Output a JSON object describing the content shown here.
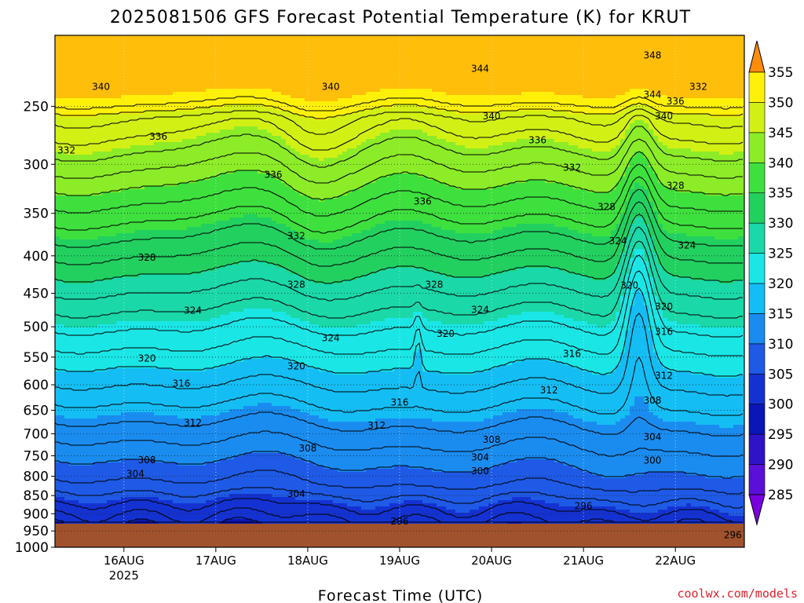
{
  "chart_data": {
    "type": "heatmap",
    "title": "2025081506 GFS Forecast Potential Temperature (K) for KRUT",
    "xlabel": "Forecast Time (UTC)",
    "ylabel": "",
    "y_scale": "pressure (log, inverted)",
    "ylim": [
      1000,
      200
    ],
    "yticks": [
      250,
      300,
      350,
      400,
      450,
      500,
      550,
      600,
      650,
      700,
      750,
      800,
      850,
      900,
      950,
      1000
    ],
    "xticks": [
      {
        "label": "16AUG",
        "sub": "2025",
        "time": "2025-08-16T00:00"
      },
      {
        "label": "17AUG",
        "sub": "",
        "time": "2025-08-17T00:00"
      },
      {
        "label": "18AUG",
        "sub": "",
        "time": "2025-08-18T00:00"
      },
      {
        "label": "19AUG",
        "sub": "",
        "time": "2025-08-19T00:00"
      },
      {
        "label": "20AUG",
        "sub": "",
        "time": "2025-08-20T00:00"
      },
      {
        "label": "21AUG",
        "sub": "",
        "time": "2025-08-21T00:00"
      },
      {
        "label": "22AUG",
        "sub": "",
        "time": "2025-08-22T00:00"
      }
    ],
    "xlim": [
      "2025-08-15T06:00",
      "2025-08-22T18:00"
    ],
    "grid": true,
    "colorbar": {
      "placement": "right",
      "levels": [
        285,
        290,
        295,
        300,
        305,
        310,
        315,
        320,
        325,
        330,
        335,
        340,
        345,
        350,
        355
      ],
      "colors": [
        "#7a00e0",
        "#5a10d8",
        "#2e14c8",
        "#0a16b8",
        "#1432d2",
        "#1e5ae6",
        "#1a8cf0",
        "#14bef4",
        "#1ae6e6",
        "#1ad8a8",
        "#22d060",
        "#3ee03e",
        "#8cec28",
        "#d2f014",
        "#fff00a",
        "#ffbe0a",
        "#ff8c0a"
      ]
    },
    "ground_color": "#a0522d",
    "contour_labels": [
      {
        "value": "348",
        "time": "2025-08-21T18:00",
        "p": 213
      },
      {
        "value": "344",
        "time": "2025-08-19T21:00",
        "p": 222
      },
      {
        "value": "344",
        "time": "2025-08-21T18:00",
        "p": 241
      },
      {
        "value": "340",
        "time": "2025-08-15T18:00",
        "p": 235
      },
      {
        "value": "340",
        "time": "2025-08-18T06:00",
        "p": 235
      },
      {
        "value": "340",
        "time": "2025-08-20T00:00",
        "p": 258
      },
      {
        "value": "340",
        "time": "2025-08-21T21:00",
        "p": 258
      },
      {
        "value": "336",
        "time": "2025-08-22T00:00",
        "p": 246
      },
      {
        "value": "332",
        "time": "2025-08-22T06:00",
        "p": 235
      },
      {
        "value": "336",
        "time": "2025-08-16T09:00",
        "p": 275
      },
      {
        "value": "336",
        "time": "2025-08-20T12:00",
        "p": 278
      },
      {
        "value": "332",
        "time": "2025-08-15T09:00",
        "p": 287
      },
      {
        "value": "336",
        "time": "2025-08-17T15:00",
        "p": 310
      },
      {
        "value": "332",
        "time": "2025-08-20T21:00",
        "p": 303
      },
      {
        "value": "336",
        "time": "2025-08-19T06:00",
        "p": 337
      },
      {
        "value": "328",
        "time": "2025-08-21T06:00",
        "p": 343
      },
      {
        "value": "328",
        "time": "2025-08-22T00:00",
        "p": 321
      },
      {
        "value": "332",
        "time": "2025-08-17T21:00",
        "p": 376
      },
      {
        "value": "324",
        "time": "2025-08-21T09:00",
        "p": 382
      },
      {
        "value": "324",
        "time": "2025-08-22T03:00",
        "p": 387
      },
      {
        "value": "328",
        "time": "2025-08-16T06:00",
        "p": 402
      },
      {
        "value": "320",
        "time": "2025-08-21T12:00",
        "p": 439
      },
      {
        "value": "328",
        "time": "2025-08-17T21:00",
        "p": 438
      },
      {
        "value": "328",
        "time": "2025-08-19T09:00",
        "p": 438
      },
      {
        "value": "320",
        "time": "2025-08-21T21:00",
        "p": 469
      },
      {
        "value": "324",
        "time": "2025-08-16T18:00",
        "p": 475
      },
      {
        "value": "324",
        "time": "2025-08-19T21:00",
        "p": 474
      },
      {
        "value": "316",
        "time": "2025-08-21T21:00",
        "p": 508
      },
      {
        "value": "324",
        "time": "2025-08-18T06:00",
        "p": 518
      },
      {
        "value": "320",
        "time": "2025-08-19T12:00",
        "p": 511
      },
      {
        "value": "316",
        "time": "2025-08-20T21:00",
        "p": 544
      },
      {
        "value": "320",
        "time": "2025-08-16T06:00",
        "p": 552
      },
      {
        "value": "320",
        "time": "2025-08-17T21:00",
        "p": 566
      },
      {
        "value": "312",
        "time": "2025-08-21T21:00",
        "p": 583
      },
      {
        "value": "316",
        "time": "2025-08-16T15:00",
        "p": 598
      },
      {
        "value": "312",
        "time": "2025-08-20T15:00",
        "p": 610
      },
      {
        "value": "308",
        "time": "2025-08-21T18:00",
        "p": 630
      },
      {
        "value": "316",
        "time": "2025-08-19T00:00",
        "p": 634
      },
      {
        "value": "312",
        "time": "2025-08-16T18:00",
        "p": 676
      },
      {
        "value": "312",
        "time": "2025-08-18T18:00",
        "p": 682
      },
      {
        "value": "304",
        "time": "2025-08-21T18:00",
        "p": 707
      },
      {
        "value": "308",
        "time": "2025-08-20T00:00",
        "p": 713
      },
      {
        "value": "308",
        "time": "2025-08-18T00:00",
        "p": 733
      },
      {
        "value": "304",
        "time": "2025-08-19T21:00",
        "p": 754
      },
      {
        "value": "308",
        "time": "2025-08-16T06:00",
        "p": 760
      },
      {
        "value": "300",
        "time": "2025-08-21T18:00",
        "p": 761
      },
      {
        "value": "300",
        "time": "2025-08-19T21:00",
        "p": 787
      },
      {
        "value": "304",
        "time": "2025-08-16T03:00",
        "p": 794
      },
      {
        "value": "304",
        "time": "2025-08-17T21:00",
        "p": 845
      },
      {
        "value": "296",
        "time": "2025-08-21T00:00",
        "p": 878
      },
      {
        "value": "296",
        "time": "2025-08-19T00:00",
        "p": 922
      },
      {
        "value": "296",
        "time": "2025-08-22T15:00",
        "p": 962
      }
    ]
  },
  "credit": "coolwx.com/models"
}
